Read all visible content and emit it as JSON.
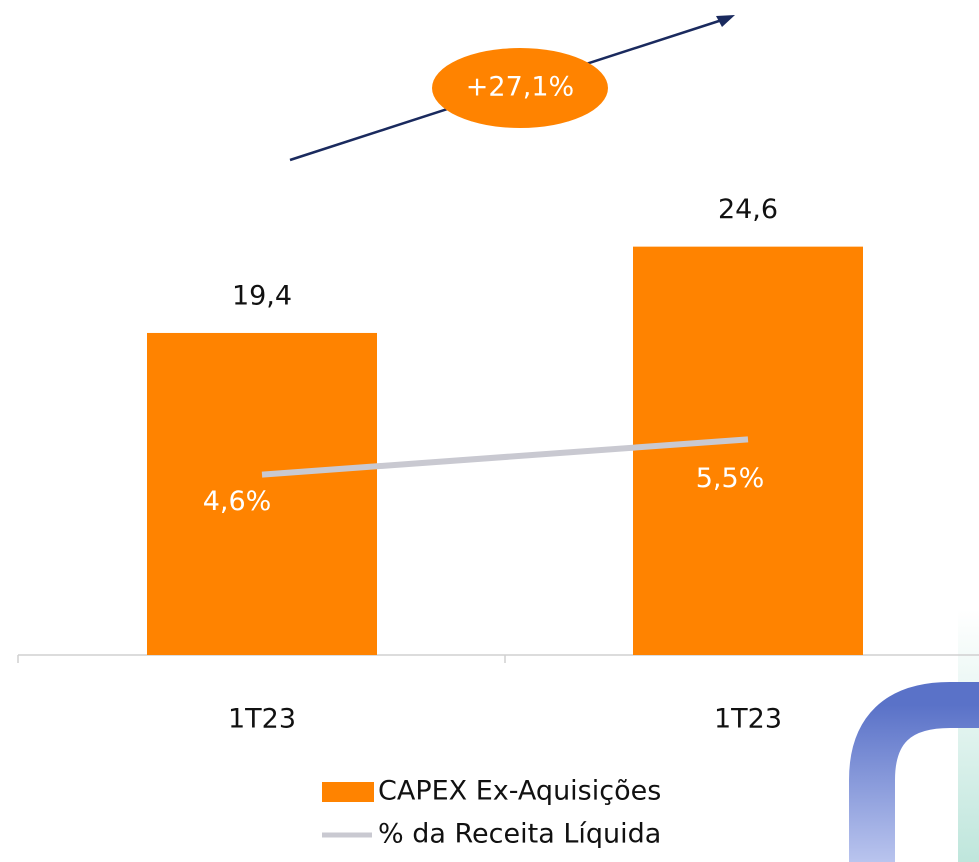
{
  "chart_data": {
    "type": "bar",
    "annotation": "+27,1%",
    "categories": [
      "1T23",
      "1T23"
    ],
    "ylim": [
      0,
      30
    ],
    "y2lim": [
      0,
      12.7
    ],
    "series": [
      {
        "name": "CAPEX Ex-Aquisições",
        "type": "bar",
        "color": "#ff8300",
        "values": [
          19.4,
          24.6
        ],
        "value_labels": [
          "19,4",
          "24,6"
        ]
      },
      {
        "name": "% da Receita Líquida",
        "type": "line",
        "axis": "y2",
        "color": "#c9c9d1",
        "values": [
          4.6,
          5.5
        ],
        "value_labels": [
          "4,6%",
          "5,5%"
        ]
      }
    ]
  }
}
